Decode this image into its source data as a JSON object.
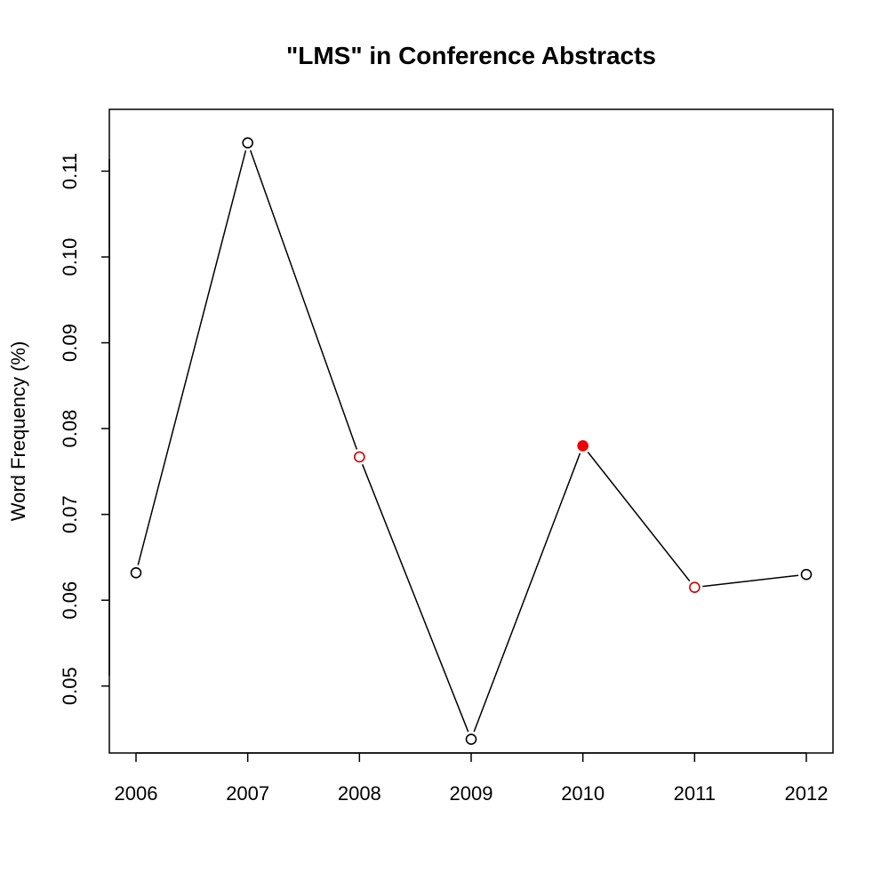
{
  "chart_data": {
    "type": "line",
    "title": "\"LMS\" in Conference Abstracts",
    "xlabel": "",
    "ylabel": "Word Frequency (%)",
    "categories": [
      "2006",
      "2007",
      "2008",
      "2009",
      "2010",
      "2011",
      "2012"
    ],
    "series": [
      {
        "values": [
          0.0632,
          0.1133,
          0.0767,
          0.0438,
          0.078,
          0.0615,
          0.063
        ],
        "marker_styles": [
          "open",
          "open",
          "open",
          "open",
          "filled",
          "open",
          "open"
        ],
        "marker_colors": [
          "#000000",
          "#000000",
          "#cc0000",
          "#000000",
          "#ee0000",
          "#cc0000",
          "#000000"
        ]
      }
    ],
    "yticks": [
      "0.05",
      "0.06",
      "0.07",
      "0.08",
      "0.09",
      "0.10",
      "0.11"
    ],
    "ylim": [
      0.0422,
      0.1172
    ],
    "grid": false,
    "line_color": "#000000"
  }
}
